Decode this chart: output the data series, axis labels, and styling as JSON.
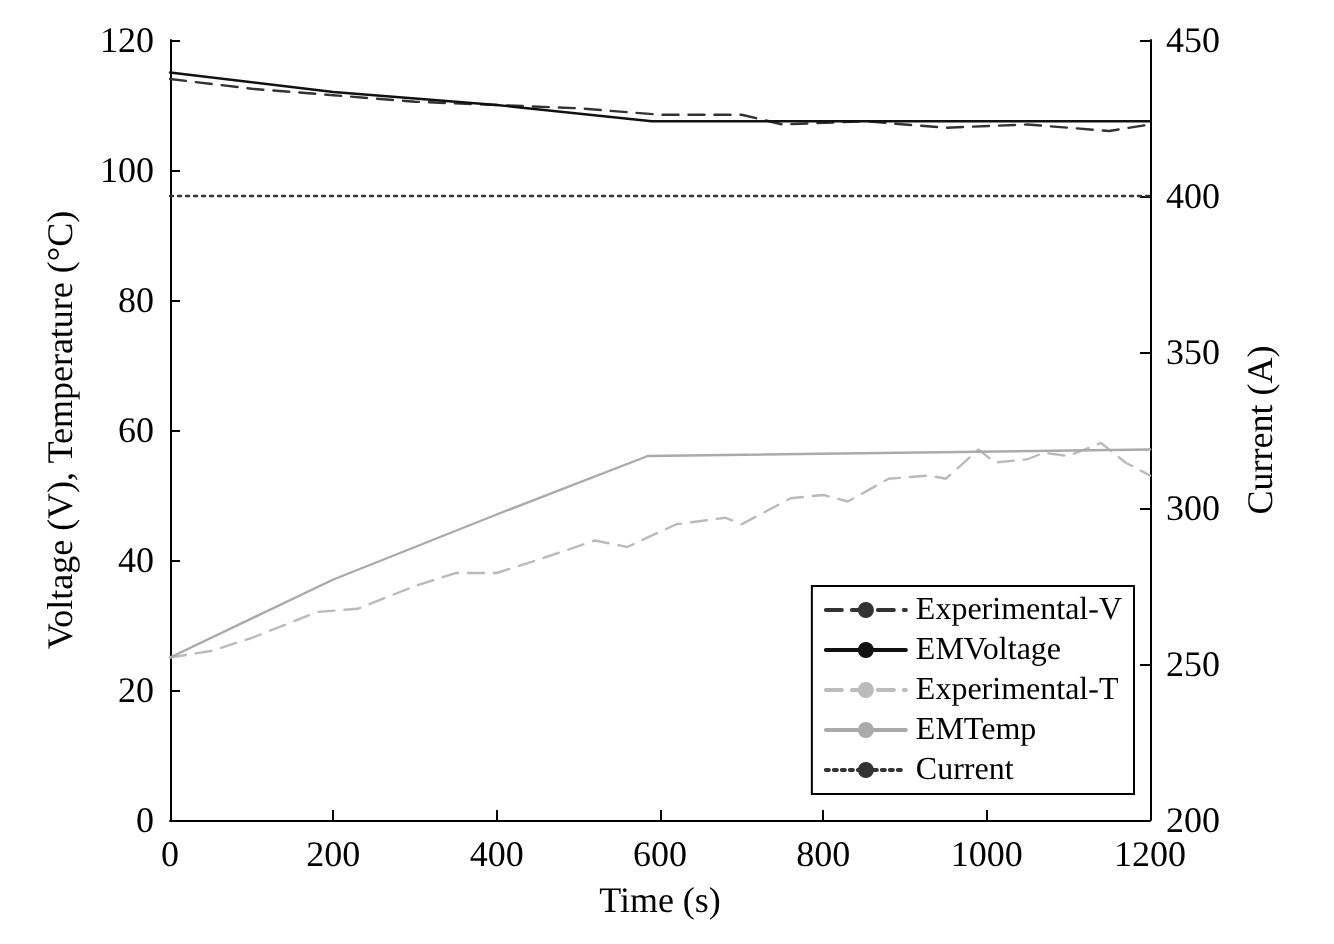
{
  "chart_data": {
    "type": "line",
    "xlabel": "Time (s)",
    "ylabel": "Voltage (V), Temperature (°C)",
    "y2label": "Current (A)",
    "xlim": [
      0,
      1200
    ],
    "xticks": [
      0,
      200,
      400,
      600,
      800,
      1000,
      1200
    ],
    "ylim": [
      0,
      120
    ],
    "yticks": [
      0,
      20,
      40,
      60,
      80,
      100,
      120
    ],
    "y2lim": [
      200,
      450
    ],
    "y2ticks": [
      200,
      250,
      300,
      350,
      400,
      450
    ],
    "grid": false,
    "legend": "bottom right",
    "marker": "none",
    "series": [
      {
        "name": "Experimental-V",
        "color": "#333333",
        "line_style": "dashed",
        "x": [
          0,
          100,
          200,
          300,
          400,
          500,
          600,
          700,
          750,
          850,
          950,
          1050,
          1150,
          1200
        ],
        "values": [
          114,
          112.5,
          111.5,
          110.5,
          110,
          109.5,
          108.5,
          108.5,
          107,
          107.5,
          106.5,
          107,
          106,
          107
        ]
      },
      {
        "name": "EMVoltage",
        "color": "#111111",
        "line_style": "solid",
        "x": [
          0,
          200,
          400,
          590,
          800,
          1000,
          1200
        ],
        "values": [
          115,
          112,
          110,
          107.5,
          107.5,
          107.5,
          107.5
        ]
      },
      {
        "name": "Experimental-T",
        "color": "#bbbbbb",
        "line_style": "dashed",
        "x": [
          0,
          50,
          100,
          180,
          230,
          300,
          350,
          400,
          450,
          520,
          560,
          620,
          680,
          700,
          760,
          800,
          830,
          880,
          930,
          950,
          990,
          1010,
          1050,
          1070,
          1100,
          1140,
          1170,
          1200
        ],
        "values": [
          25,
          26,
          28,
          32,
          32.5,
          36,
          38,
          38,
          40,
          43,
          42,
          45.5,
          46.5,
          45.5,
          49.5,
          50,
          49,
          52.5,
          53,
          52.5,
          57,
          55,
          55.5,
          56.5,
          56,
          58,
          55,
          53
        ]
      },
      {
        "name": "EMTemp",
        "color": "#aaaaaa",
        "line_style": "solid",
        "x": [
          0,
          200,
          400,
          585,
          1200
        ],
        "values": [
          25,
          37,
          47,
          56,
          57
        ]
      },
      {
        "name": "Current",
        "color": "#333333",
        "line_style": "dotted",
        "axis": "y2",
        "x": [
          0,
          1200
        ],
        "values": [
          400,
          400
        ]
      }
    ]
  }
}
